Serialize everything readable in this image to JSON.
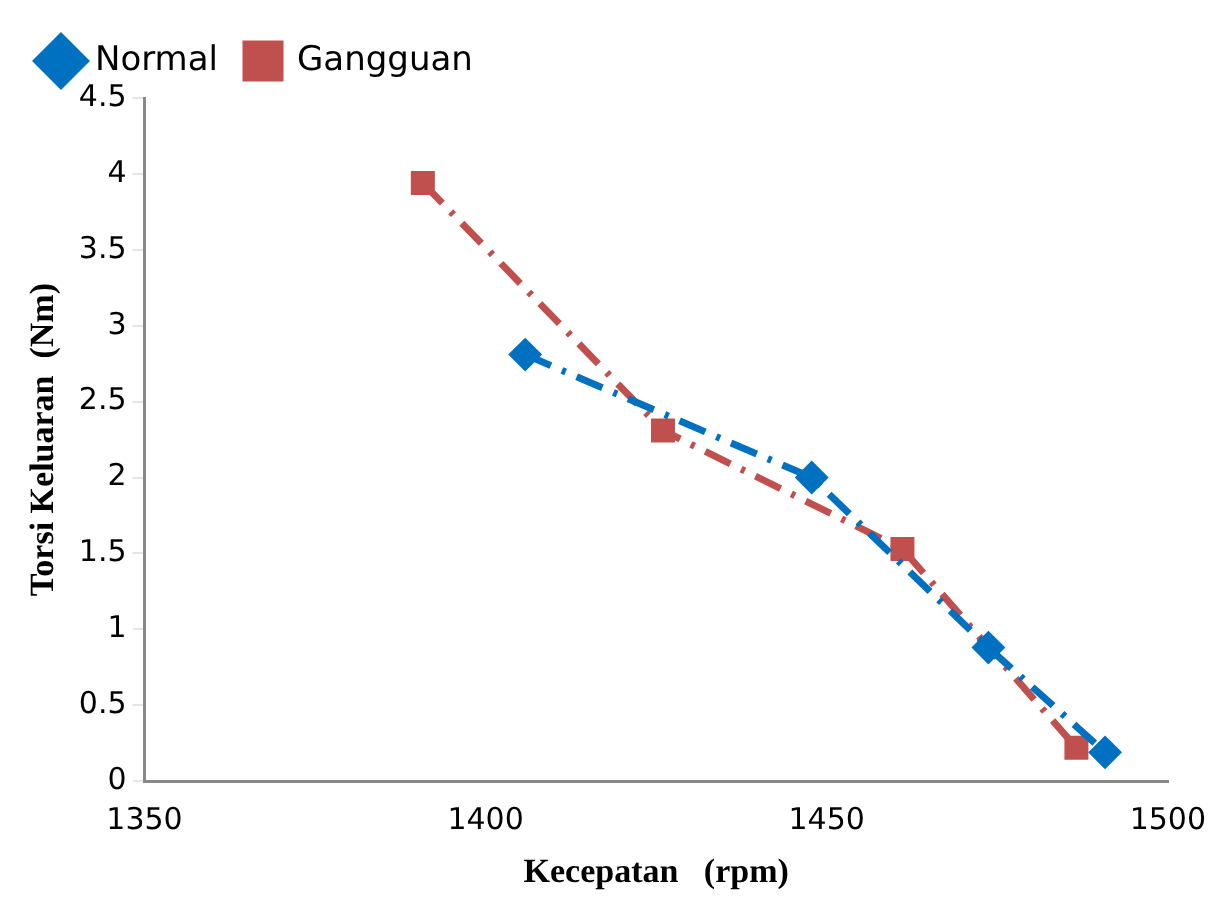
{
  "chart_data": {
    "type": "line",
    "xlabel": "Kecepatan   (rpm)",
    "ylabel": "Torsi Keluaran  (Nm)",
    "xlim": [
      1350,
      1500
    ],
    "xticks": [
      1350,
      1400,
      1450,
      1500
    ],
    "ylim": [
      0,
      4.5
    ],
    "yticks": [
      0,
      0.5,
      1,
      1.5,
      2,
      2.5,
      3,
      3.5,
      4,
      4.5
    ],
    "grid": false,
    "legend": "top left",
    "line_style": "dashed",
    "series": [
      {
        "name": "Normal",
        "color": "#0070c0",
        "marker": "diamond",
        "x": [
          1405.8,
          1447.8,
          1473.7,
          1490.8
        ],
        "values": [
          2.81,
          2.0,
          0.88,
          0.19
        ]
      },
      {
        "name": "Gangguan",
        "color": "#c0504d",
        "marker": "square",
        "x": [
          1390.8,
          1426,
          1461.1,
          1486.6
        ],
        "values": [
          3.94,
          2.31,
          1.53,
          0.22
        ]
      }
    ]
  }
}
